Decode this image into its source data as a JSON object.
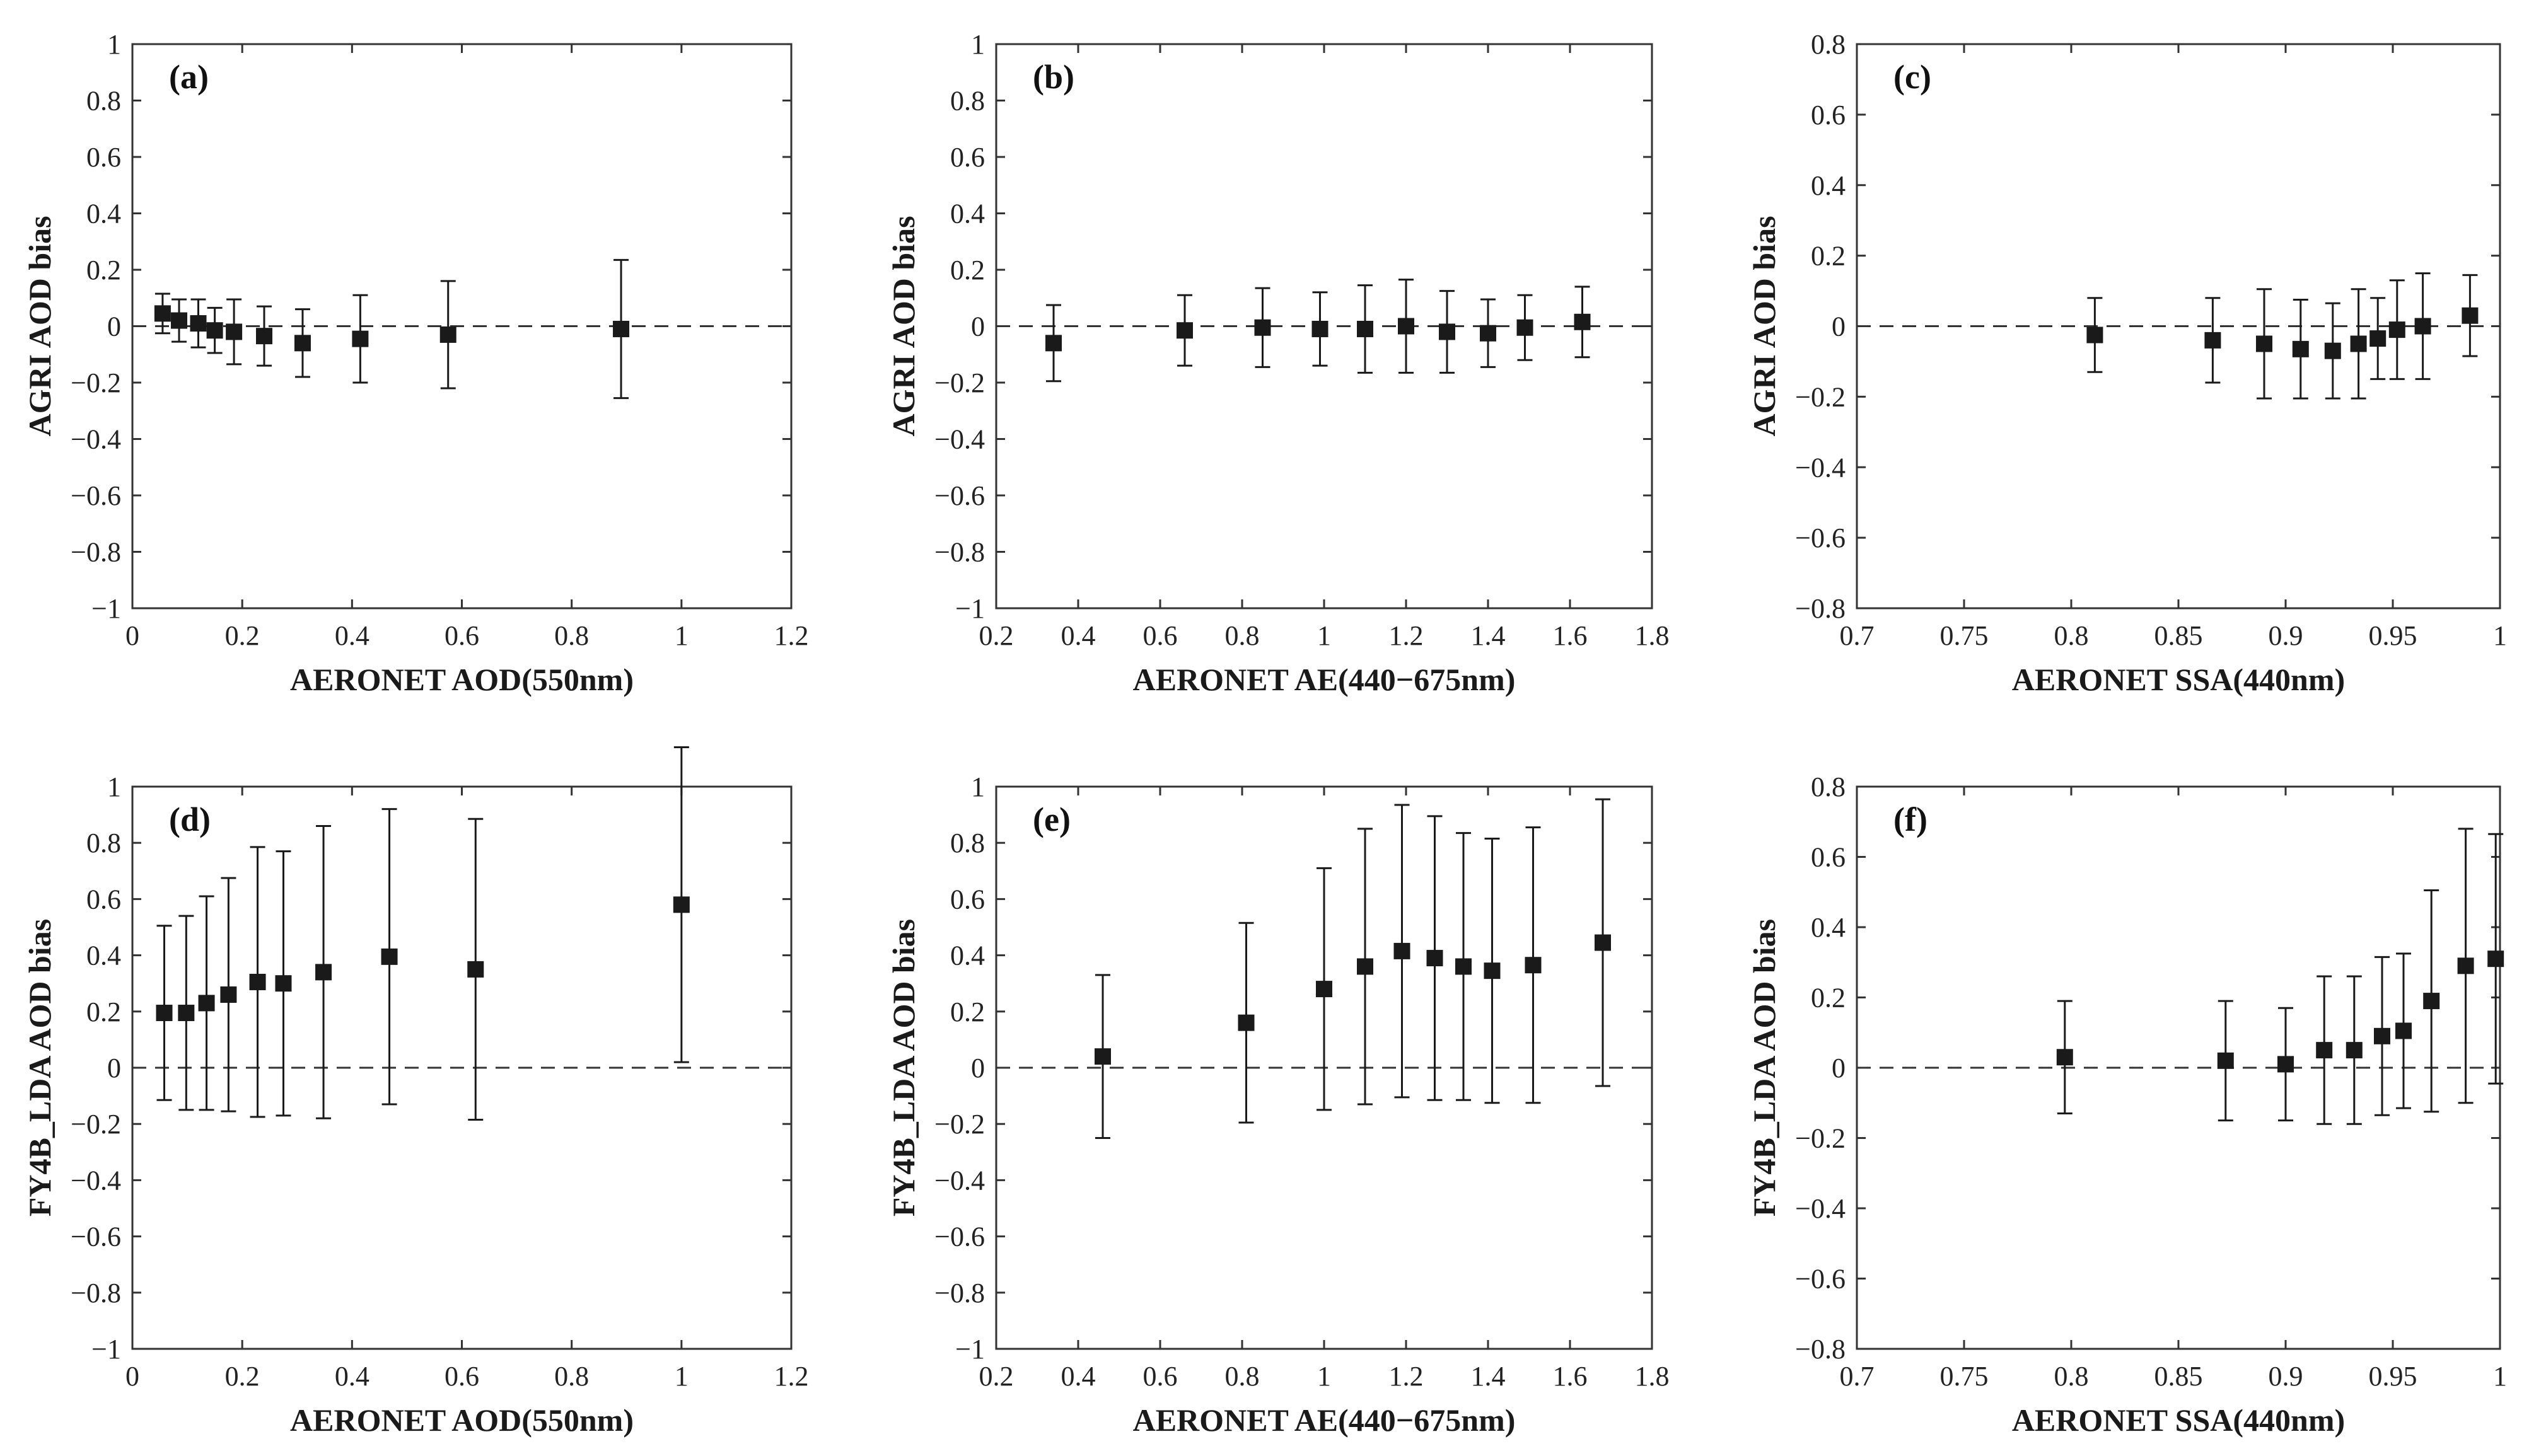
{
  "chart_data": [
    {
      "type": "scatter",
      "panel_label": "(a)",
      "xlabel": "AERONET AOD(550nm)",
      "ylabel": "AGRI AOD bias",
      "xlim": [
        0,
        1.2
      ],
      "ylim": [
        -1,
        1
      ],
      "xticks": [
        0,
        0.2,
        0.4,
        0.6,
        0.8,
        1,
        1.2
      ],
      "yticks": [
        -1,
        -0.8,
        -0.6,
        -0.4,
        -0.2,
        0,
        0.2,
        0.4,
        0.6,
        0.8,
        1
      ],
      "xtick_labels": [
        "0",
        "0.2",
        "0.4",
        "0.6",
        "0.8",
        "1",
        "1.2"
      ],
      "ytick_labels": [
        "−1",
        "−0.8",
        "−0.6",
        "−0.4",
        "−0.2",
        "0",
        "0.2",
        "0.4",
        "0.6",
        "0.8",
        "1"
      ],
      "reference_line": 0,
      "points": [
        {
          "x": 0.055,
          "y": 0.045,
          "err": 0.07
        },
        {
          "x": 0.085,
          "y": 0.02,
          "err": 0.075
        },
        {
          "x": 0.12,
          "y": 0.01,
          "err": 0.085
        },
        {
          "x": 0.15,
          "y": -0.015,
          "err": 0.08
        },
        {
          "x": 0.185,
          "y": -0.02,
          "err": 0.115
        },
        {
          "x": 0.24,
          "y": -0.035,
          "err": 0.105
        },
        {
          "x": 0.31,
          "y": -0.06,
          "err": 0.12
        },
        {
          "x": 0.415,
          "y": -0.045,
          "err": 0.155
        },
        {
          "x": 0.575,
          "y": -0.03,
          "err": 0.19
        },
        {
          "x": 0.89,
          "y": -0.01,
          "err": 0.245
        }
      ]
    },
    {
      "type": "scatter",
      "panel_label": "(b)",
      "xlabel": "AERONET AE(440−675nm)",
      "ylabel": "AGRI AOD bias",
      "xlim": [
        0.2,
        1.8
      ],
      "ylim": [
        -1,
        1
      ],
      "xticks": [
        0.2,
        0.4,
        0.6,
        0.8,
        1,
        1.2,
        1.4,
        1.6,
        1.8
      ],
      "yticks": [
        -1,
        -0.8,
        -0.6,
        -0.4,
        -0.2,
        0,
        0.2,
        0.4,
        0.6,
        0.8,
        1
      ],
      "xtick_labels": [
        "0.2",
        "0.4",
        "0.6",
        "0.8",
        "1",
        "1.2",
        "1.4",
        "1.6",
        "1.8"
      ],
      "ytick_labels": [
        "−1",
        "−0.8",
        "−0.6",
        "−0.4",
        "−0.2",
        "0",
        "0.2",
        "0.4",
        "0.6",
        "0.8",
        "1"
      ],
      "reference_line": 0,
      "points": [
        {
          "x": 0.34,
          "y": -0.06,
          "err": 0.135
        },
        {
          "x": 0.66,
          "y": -0.015,
          "err": 0.125
        },
        {
          "x": 0.85,
          "y": -0.005,
          "err": 0.14
        },
        {
          "x": 0.99,
          "y": -0.01,
          "err": 0.13
        },
        {
          "x": 1.1,
          "y": -0.01,
          "err": 0.155
        },
        {
          "x": 1.2,
          "y": 0.0,
          "err": 0.165
        },
        {
          "x": 1.3,
          "y": -0.02,
          "err": 0.145
        },
        {
          "x": 1.4,
          "y": -0.025,
          "err": 0.12
        },
        {
          "x": 1.49,
          "y": -0.005,
          "err": 0.115
        },
        {
          "x": 1.63,
          "y": 0.015,
          "err": 0.125
        }
      ]
    },
    {
      "type": "scatter",
      "panel_label": "(c)",
      "xlabel": "AERONET SSA(440nm)",
      "ylabel": "AGRI AOD bias",
      "xlim": [
        0.7,
        1
      ],
      "ylim": [
        -0.8,
        0.8
      ],
      "xticks": [
        0.7,
        0.75,
        0.8,
        0.85,
        0.9,
        0.95,
        1
      ],
      "yticks": [
        -0.8,
        -0.6,
        -0.4,
        -0.2,
        0,
        0.2,
        0.4,
        0.6,
        0.8
      ],
      "xtick_labels": [
        "0.7",
        "0.75",
        "0.8",
        "0.85",
        "0.9",
        "0.95",
        "1"
      ],
      "ytick_labels": [
        "−0.8",
        "−0.6",
        "−0.4",
        "−0.2",
        "0",
        "0.2",
        "0.4",
        "0.6",
        "0.8"
      ],
      "reference_line": 0,
      "points": [
        {
          "x": 0.811,
          "y": -0.025,
          "err": 0.105
        },
        {
          "x": 0.866,
          "y": -0.04,
          "err": 0.12
        },
        {
          "x": 0.89,
          "y": -0.05,
          "err": 0.155
        },
        {
          "x": 0.907,
          "y": -0.065,
          "err": 0.14
        },
        {
          "x": 0.922,
          "y": -0.07,
          "err": 0.135
        },
        {
          "x": 0.934,
          "y": -0.05,
          "err": 0.155
        },
        {
          "x": 0.943,
          "y": -0.035,
          "err": 0.115
        },
        {
          "x": 0.952,
          "y": -0.01,
          "err": 0.14
        },
        {
          "x": 0.964,
          "y": 0.0,
          "err": 0.15
        },
        {
          "x": 0.986,
          "y": 0.03,
          "err": 0.115
        }
      ]
    },
    {
      "type": "scatter",
      "panel_label": "(d)",
      "xlabel": "AERONET AOD(550nm)",
      "ylabel": "FY4B_LDA AOD bias",
      "xlim": [
        0,
        1.2
      ],
      "ylim": [
        -1,
        1
      ],
      "xticks": [
        0,
        0.2,
        0.4,
        0.6,
        0.8,
        1,
        1.2
      ],
      "yticks": [
        -1,
        -0.8,
        -0.6,
        -0.4,
        -0.2,
        0,
        0.2,
        0.4,
        0.6,
        0.8,
        1
      ],
      "xtick_labels": [
        "0",
        "0.2",
        "0.4",
        "0.6",
        "0.8",
        "1",
        "1.2"
      ],
      "ytick_labels": [
        "−1",
        "−0.8",
        "−0.6",
        "−0.4",
        "−0.2",
        "0",
        "0.2",
        "0.4",
        "0.6",
        "0.8",
        "1"
      ],
      "reference_line": 0,
      "points": [
        {
          "x": 0.058,
          "y": 0.195,
          "err": 0.31
        },
        {
          "x": 0.098,
          "y": 0.195,
          "err": 0.345
        },
        {
          "x": 0.135,
          "y": 0.23,
          "err": 0.38
        },
        {
          "x": 0.175,
          "y": 0.26,
          "err": 0.415
        },
        {
          "x": 0.228,
          "y": 0.305,
          "err": 0.48
        },
        {
          "x": 0.275,
          "y": 0.3,
          "err": 0.47
        },
        {
          "x": 0.348,
          "y": 0.34,
          "err": 0.52
        },
        {
          "x": 0.468,
          "y": 0.395,
          "err": 0.525
        },
        {
          "x": 0.625,
          "y": 0.35,
          "err": 0.535
        },
        {
          "x": 1.0,
          "y": 0.58,
          "err": 0.56
        }
      ]
    },
    {
      "type": "scatter",
      "panel_label": "(e)",
      "xlabel": "AERONET AE(440−675nm)",
      "ylabel": "FY4B_LDA AOD bias",
      "xlim": [
        0.2,
        1.8
      ],
      "ylim": [
        -1,
        1
      ],
      "xticks": [
        0.2,
        0.4,
        0.6,
        0.8,
        1,
        1.2,
        1.4,
        1.6,
        1.8
      ],
      "yticks": [
        -1,
        -0.8,
        -0.6,
        -0.4,
        -0.2,
        0,
        0.2,
        0.4,
        0.6,
        0.8,
        1
      ],
      "xtick_labels": [
        "0.2",
        "0.4",
        "0.6",
        "0.8",
        "1",
        "1.2",
        "1.4",
        "1.6",
        "1.8"
      ],
      "ytick_labels": [
        "−1",
        "−0.8",
        "−0.6",
        "−0.4",
        "−0.2",
        "0",
        "0.2",
        "0.4",
        "0.6",
        "0.8",
        "1"
      ],
      "reference_line": 0,
      "points": [
        {
          "x": 0.46,
          "y": 0.04,
          "err": 0.29
        },
        {
          "x": 0.81,
          "y": 0.16,
          "err": 0.355
        },
        {
          "x": 1.0,
          "y": 0.28,
          "err": 0.43
        },
        {
          "x": 1.1,
          "y": 0.36,
          "err": 0.49
        },
        {
          "x": 1.19,
          "y": 0.415,
          "err": 0.52
        },
        {
          "x": 1.27,
          "y": 0.39,
          "err": 0.505
        },
        {
          "x": 1.34,
          "y": 0.36,
          "err": 0.475
        },
        {
          "x": 1.41,
          "y": 0.345,
          "err": 0.47
        },
        {
          "x": 1.51,
          "y": 0.365,
          "err": 0.49
        },
        {
          "x": 1.68,
          "y": 0.445,
          "err": 0.51
        }
      ]
    },
    {
      "type": "scatter",
      "panel_label": "(f)",
      "xlabel": "AERONET SSA(440nm)",
      "ylabel": "FY4B_LDA AOD bias",
      "xlim": [
        0.7,
        1
      ],
      "ylim": [
        -0.8,
        0.8
      ],
      "xticks": [
        0.7,
        0.75,
        0.8,
        0.85,
        0.9,
        0.95,
        1
      ],
      "yticks": [
        -0.8,
        -0.6,
        -0.4,
        -0.2,
        0,
        0.2,
        0.4,
        0.6,
        0.8
      ],
      "xtick_labels": [
        "0.7",
        "0.75",
        "0.8",
        "0.85",
        "0.9",
        "0.95",
        "1"
      ],
      "ytick_labels": [
        "−0.8",
        "−0.6",
        "−0.4",
        "−0.2",
        "0",
        "0.2",
        "0.4",
        "0.6",
        "0.8"
      ],
      "reference_line": 0,
      "points": [
        {
          "x": 0.797,
          "y": 0.03,
          "err": 0.16
        },
        {
          "x": 0.872,
          "y": 0.02,
          "err": 0.17
        },
        {
          "x": 0.9,
          "y": 0.01,
          "err": 0.16
        },
        {
          "x": 0.918,
          "y": 0.05,
          "err": 0.21
        },
        {
          "x": 0.932,
          "y": 0.05,
          "err": 0.21
        },
        {
          "x": 0.945,
          "y": 0.09,
          "err": 0.225
        },
        {
          "x": 0.955,
          "y": 0.105,
          "err": 0.22
        },
        {
          "x": 0.968,
          "y": 0.19,
          "err": 0.315
        },
        {
          "x": 0.984,
          "y": 0.29,
          "err": 0.39
        },
        {
          "x": 0.998,
          "y": 0.31,
          "err": 0.355
        }
      ]
    }
  ],
  "colors": {
    "marker": "#1a1a1a",
    "errorbar": "#1a1a1a",
    "axes": "#333333",
    "reference_line": "#333333"
  }
}
